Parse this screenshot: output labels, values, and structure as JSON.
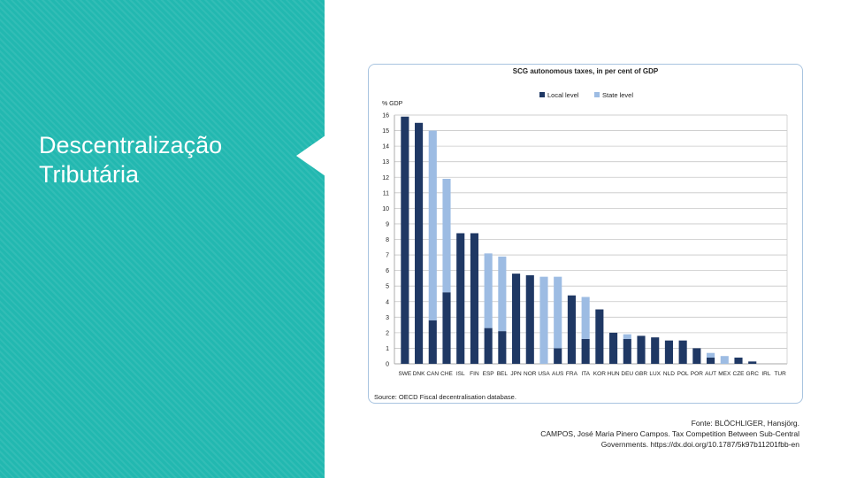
{
  "slide": {
    "title_line1": "Descentralização",
    "title_line2": "Tributária",
    "colors": {
      "sidebar": "#22b8b0",
      "title": "#ffffff"
    }
  },
  "chart_source": "Source: OECD Fiscal decentralisation database.",
  "fonte": {
    "line1": "Fonte: BLÖCHLIGER, Hansjörg.",
    "line2": "CAMPOS, José Maria Pinero Campos. Tax Competition Between Sub-Central",
    "line3": "Governments. https://dx.doi.org/10.1787/5k97b11201fbb-en"
  },
  "chart_data": {
    "type": "bar",
    "stacked": true,
    "title": "SCG autonomous taxes, in per cent of GDP",
    "ylabel": "% GDP",
    "xlabel": "",
    "ylim": [
      0,
      16
    ],
    "yticks": [
      0,
      1,
      2,
      3,
      4,
      5,
      6,
      7,
      8,
      9,
      10,
      11,
      12,
      13,
      14,
      15,
      16
    ],
    "grid": true,
    "legend_position": "top-center",
    "categories": [
      "SWE",
      "DNK",
      "CAN",
      "CHE",
      "ISL",
      "FIN",
      "ESP",
      "BEL",
      "JPN",
      "NOR",
      "USA",
      "AUS",
      "FRA",
      "ITA",
      "KOR",
      "HUN",
      "DEU",
      "GBR",
      "LUX",
      "NLD",
      "POL",
      "POR",
      "AUT",
      "MEX",
      "CZE",
      "GRC",
      "IRL",
      "TUR"
    ],
    "series": [
      {
        "name": "Local level",
        "color": "#1f3864",
        "values": [
          15.9,
          15.5,
          2.8,
          4.6,
          8.4,
          8.4,
          2.3,
          2.1,
          5.8,
          5.7,
          0,
          1.0,
          4.4,
          1.6,
          3.5,
          2.0,
          1.6,
          1.8,
          1.7,
          1.5,
          1.5,
          1.0,
          0.4,
          0,
          0.4,
          0.15,
          0,
          0
        ]
      },
      {
        "name": "State level",
        "color": "#9dbce3",
        "values": [
          0,
          0,
          12.2,
          7.3,
          0,
          0,
          4.8,
          4.8,
          0,
          0,
          5.6,
          4.6,
          0,
          2.7,
          0,
          0,
          0.3,
          0,
          0,
          0,
          0,
          0,
          0.3,
          0.5,
          0,
          0,
          0,
          0
        ]
      }
    ]
  }
}
